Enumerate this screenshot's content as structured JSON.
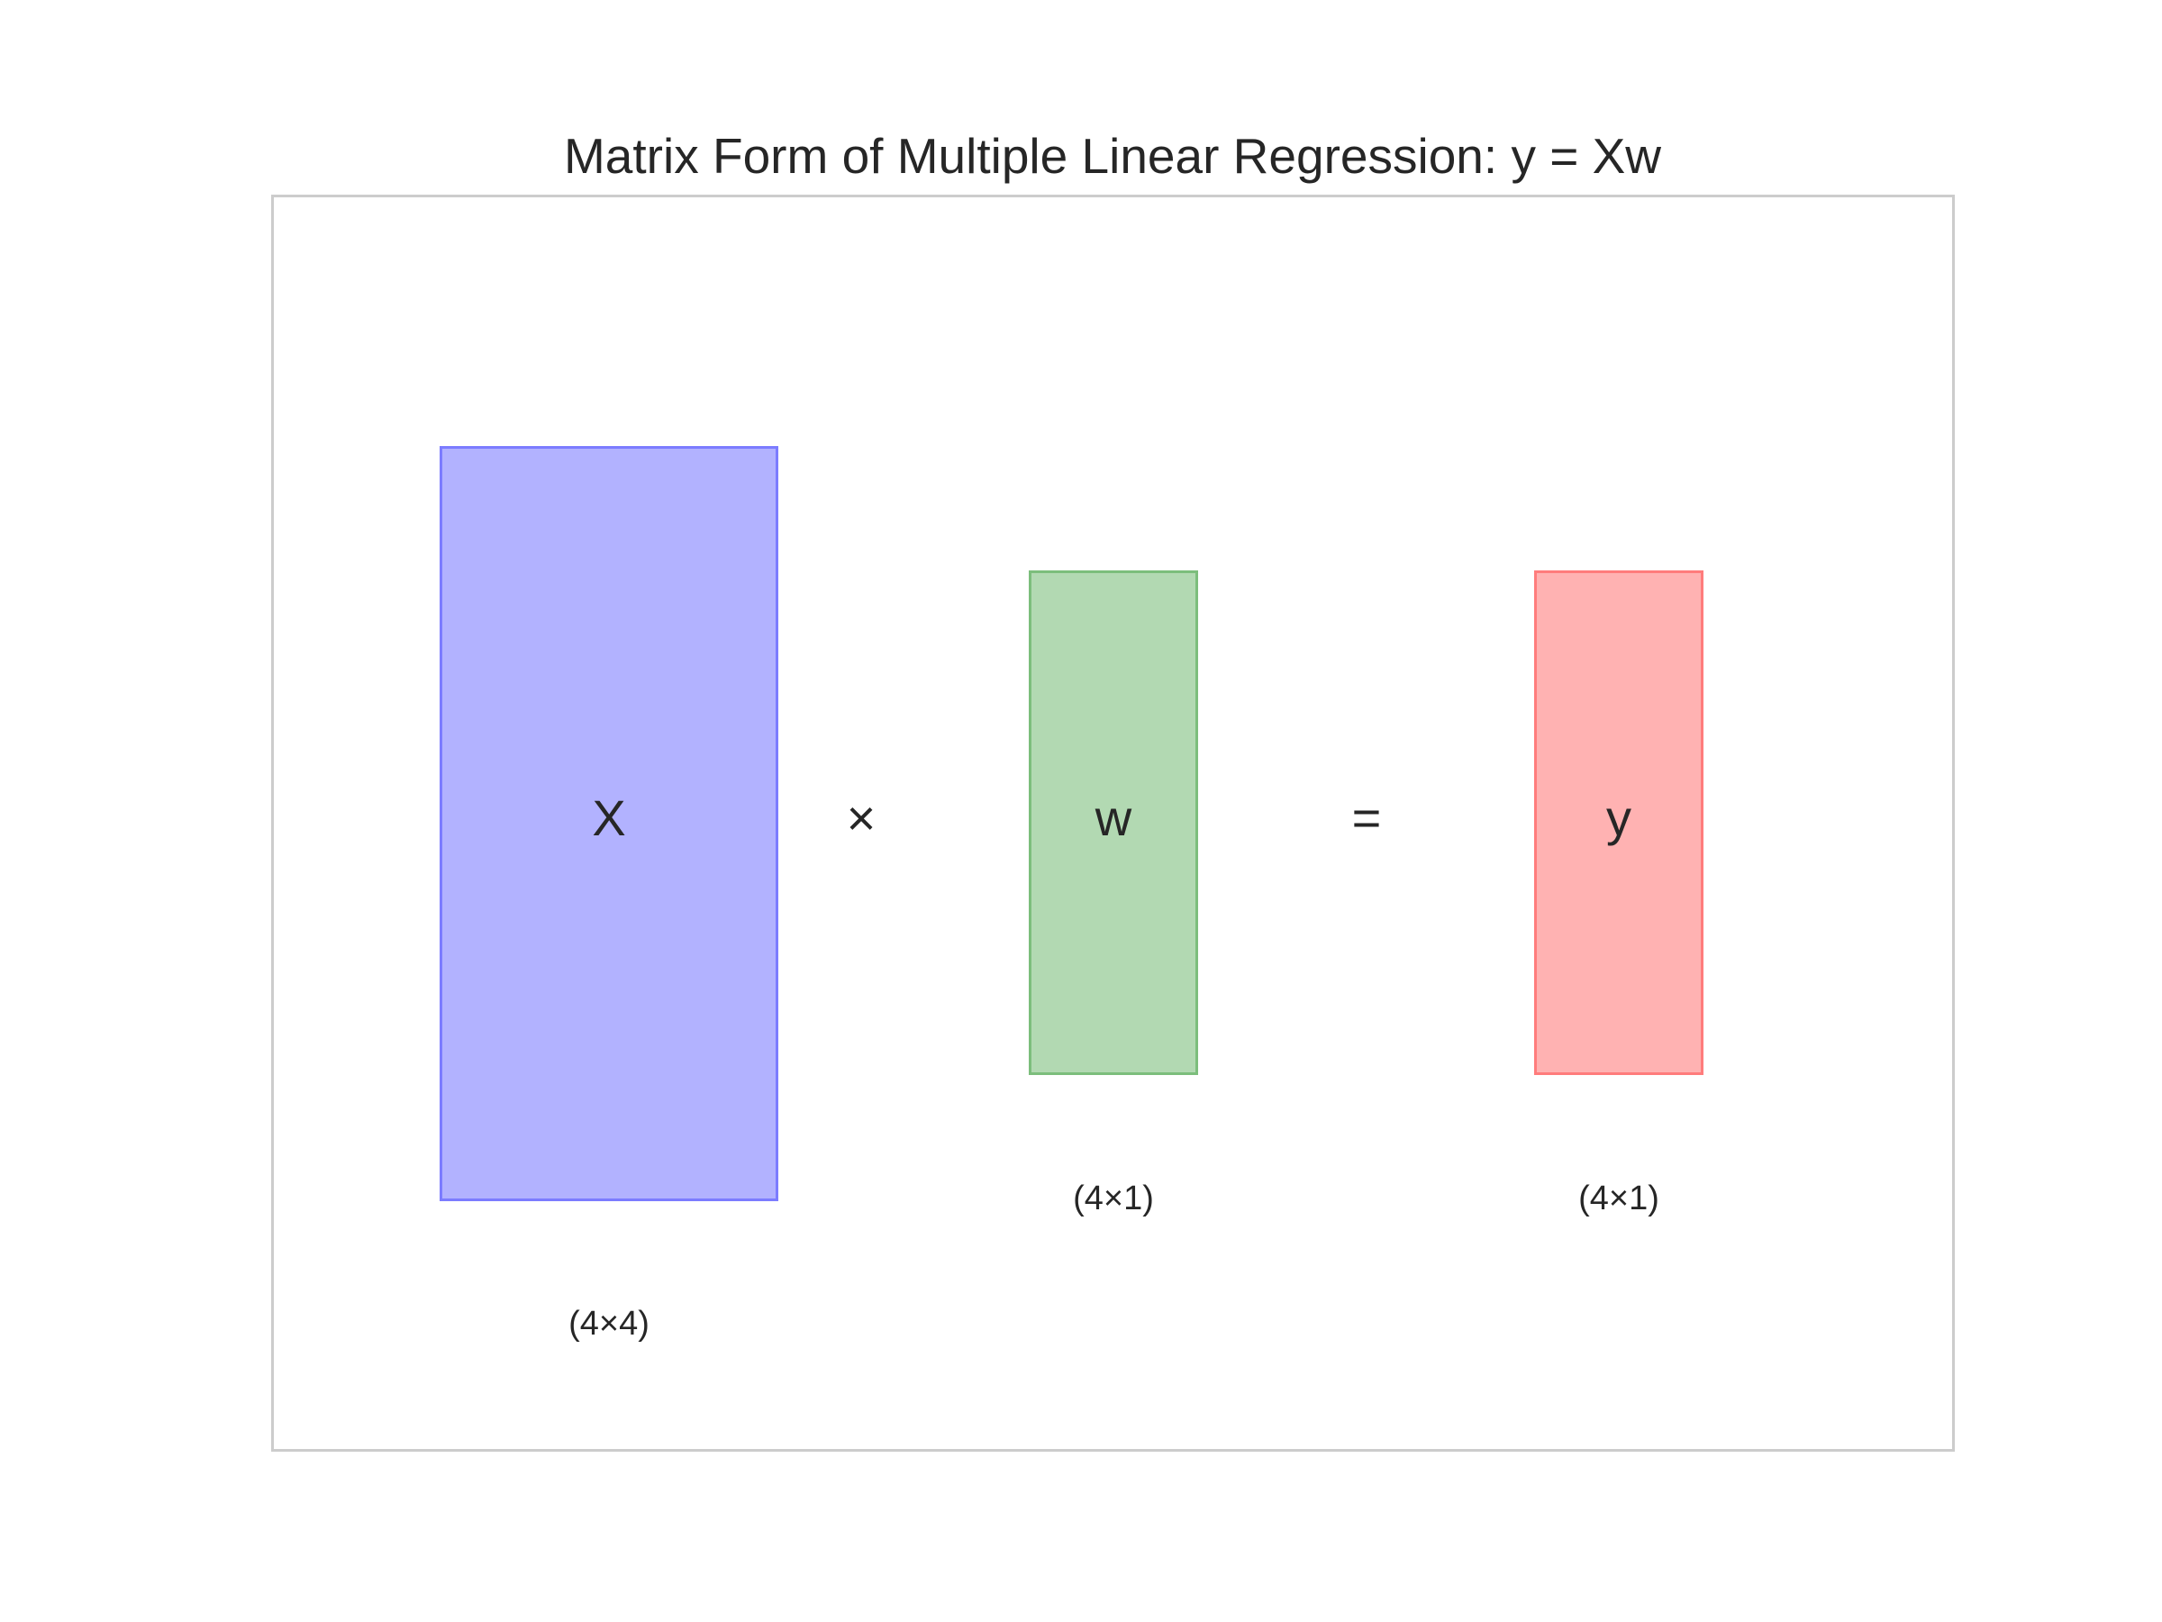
{
  "title": "Matrix Form of Multiple Linear Regression: y = Xw",
  "matrices": {
    "x": {
      "label": "X",
      "dims": "(4×4)",
      "color": "#0000ff",
      "rows": 4,
      "cols": 4
    },
    "w": {
      "label": "w",
      "dims": "(4×1)",
      "color": "#008000",
      "rows": 4,
      "cols": 1
    },
    "y": {
      "label": "y",
      "dims": "(4×1)",
      "color": "#ff0000",
      "rows": 4,
      "cols": 1
    }
  },
  "operators": {
    "multiply": "×",
    "equals": "="
  }
}
